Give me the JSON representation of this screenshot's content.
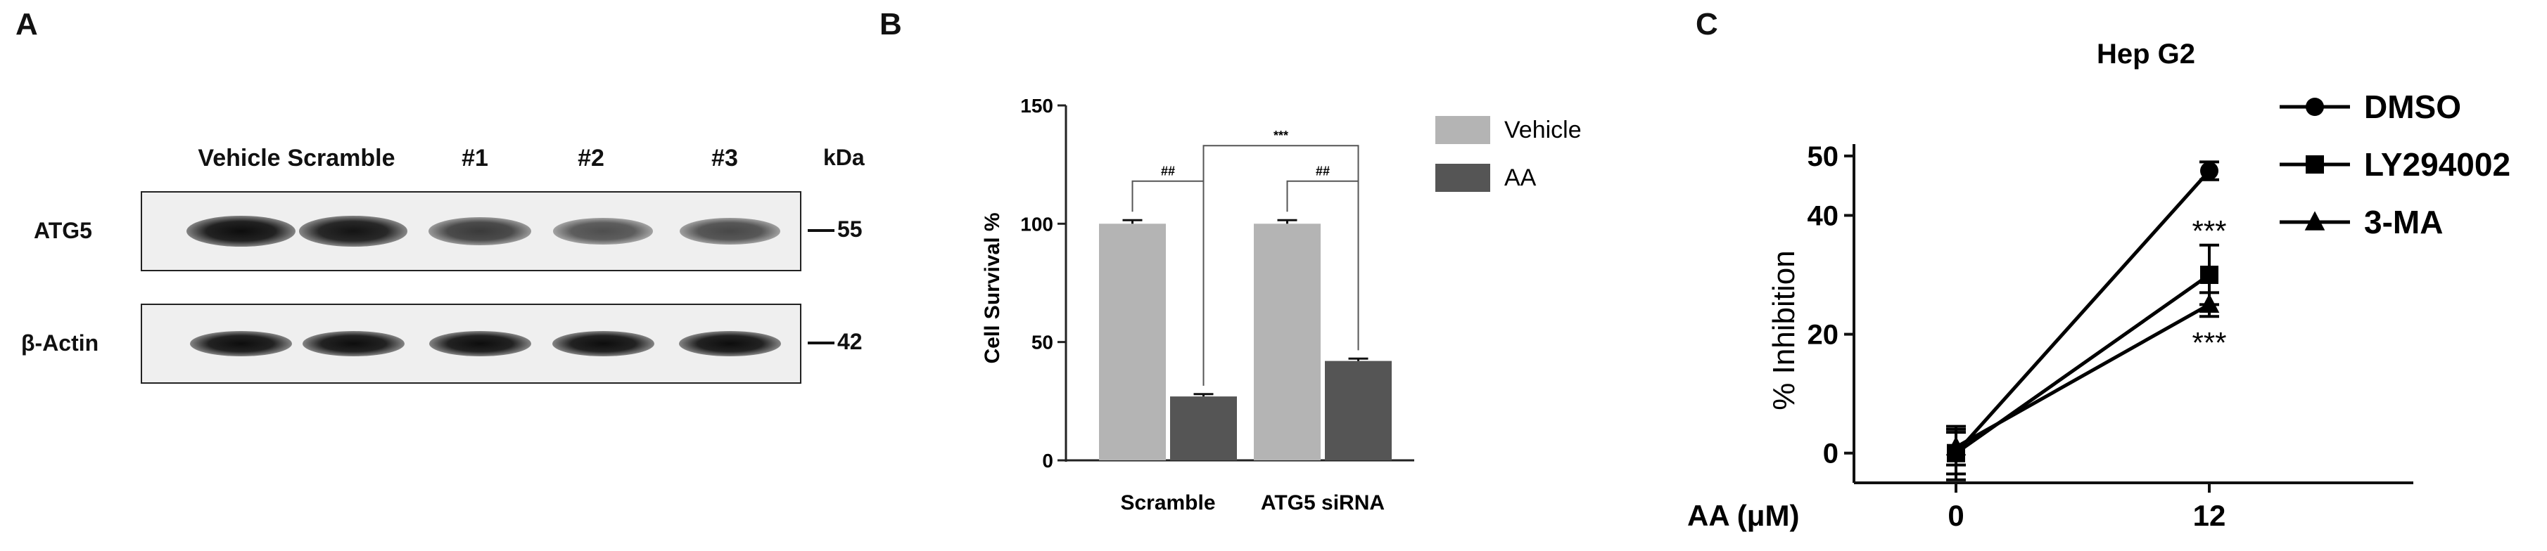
{
  "panelA": {
    "letter": "A",
    "lanes": [
      "Vehicle",
      "Scramble",
      "#1",
      "#2",
      "#3"
    ],
    "kda_label": "kDa",
    "rows": [
      {
        "label": "ATG5",
        "mw": "55",
        "intensity": [
          1.0,
          0.95,
          0.7,
          0.55,
          0.6
        ]
      },
      {
        "label": "β-Actin",
        "mw": "42",
        "intensity": [
          1.0,
          1.0,
          1.0,
          1.0,
          1.0
        ]
      }
    ]
  },
  "panelB": {
    "letter": "B",
    "chart_data": {
      "type": "bar",
      "categories": [
        "Scramble",
        "ATG5 siRNA"
      ],
      "series": [
        {
          "name": "Vehicle",
          "color": "#b4b4b4",
          "values": [
            100,
            100
          ],
          "errors": [
            1.5,
            1.5
          ]
        },
        {
          "name": "AA",
          "color": "#555555",
          "values": [
            27,
            42
          ],
          "errors": [
            1.0,
            1.0
          ]
        }
      ],
      "ylabel": "Cell Survival %",
      "ylim": [
        0,
        150
      ],
      "yticks": [
        "0",
        "50",
        "100",
        "150"
      ],
      "legend_position": "top-right",
      "annotations": [
        {
          "text": "##",
          "between": "Scramble Vehicle vs AA"
        },
        {
          "text": "##",
          "between": "ATG5 siRNA Vehicle vs AA"
        },
        {
          "text": "***",
          "between": "Scramble AA vs ATG5 siRNA AA"
        }
      ]
    }
  },
  "panelC": {
    "letter": "C",
    "chart_data": {
      "type": "line",
      "title": "Hep G2",
      "xlabel": "AA (μM)",
      "x": [
        "0",
        "12"
      ],
      "ylabel": "% Inhibition",
      "ylim": [
        -5,
        52
      ],
      "yticks": [
        "0",
        "20",
        "40",
        "50"
      ],
      "legend_position": "top-right",
      "series": [
        {
          "name": "DMSO",
          "marker": "circle",
          "values": [
            0,
            47.5
          ],
          "errors": [
            4.5,
            1.5
          ]
        },
        {
          "name": "LY294002",
          "marker": "square",
          "values": [
            0,
            30
          ],
          "errors": [
            3.5,
            5
          ]
        },
        {
          "name": "3-MA",
          "marker": "triangle",
          "values": [
            1,
            25
          ],
          "errors": [
            3,
            2
          ]
        }
      ],
      "annotations": [
        {
          "text": "***",
          "series": "LY294002"
        },
        {
          "text": "***",
          "series": "3-MA"
        }
      ]
    }
  }
}
